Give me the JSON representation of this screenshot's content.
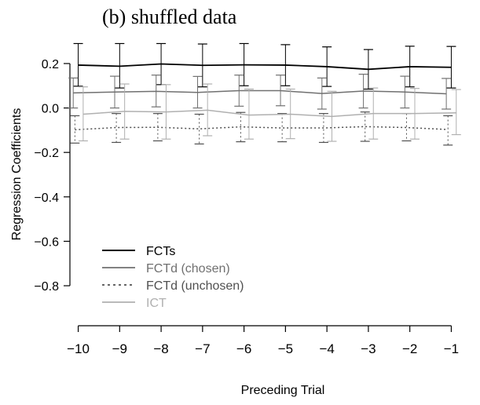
{
  "chart_data": {
    "type": "line",
    "title": "(b) shuffled data",
    "xlabel": "Preceding Trial",
    "ylabel": "Regression Coefficients",
    "x": [
      -10,
      -9,
      -8,
      -7,
      -6,
      -5,
      -4,
      -3,
      -2,
      -1
    ],
    "x_tick_labels": [
      "−10",
      "−9",
      "−8",
      "−7",
      "−6",
      "−5",
      "−4",
      "−3",
      "−2",
      "−1"
    ],
    "yticks": [
      0.2,
      0.0,
      -0.2,
      -0.4,
      -0.6,
      -0.8
    ],
    "y_tick_labels": [
      "0.2",
      "0.0",
      "−0.2",
      "−0.4",
      "−0.6",
      "−0.8"
    ],
    "xlim": [
      -10.2,
      -0.8
    ],
    "ylim": [
      -0.98,
      0.38
    ],
    "grid": false,
    "legend_position": "bottom-left",
    "series": [
      {
        "name": "FCTs",
        "color": "#000000",
        "dash": "solid",
        "values": [
          0.193,
          0.188,
          0.198,
          0.192,
          0.194,
          0.193,
          0.186,
          0.174,
          0.186,
          0.183
        ],
        "err_low": [
          0.098,
          0.09,
          0.105,
          0.095,
          0.1,
          0.1,
          0.097,
          0.085,
          0.095,
          0.09
        ],
        "err_high": [
          0.29,
          0.29,
          0.29,
          0.288,
          0.29,
          0.285,
          0.275,
          0.263,
          0.278,
          0.277
        ]
      },
      {
        "name": "FCTd (chosen)",
        "color": "#707070",
        "dash": "solid",
        "values": [
          0.068,
          0.072,
          0.075,
          0.07,
          0.078,
          0.078,
          0.065,
          0.076,
          0.072,
          0.064
        ],
        "err_low": [
          0.0,
          0.0,
          0.005,
          0.0,
          0.008,
          0.01,
          -0.005,
          0.0,
          0.0,
          -0.005
        ],
        "err_high": [
          0.135,
          0.143,
          0.148,
          0.142,
          0.148,
          0.148,
          0.135,
          0.152,
          0.143,
          0.133
        ]
      },
      {
        "name": "FCTd (unchosen)",
        "color": "#505050",
        "dash": "dotted",
        "values": [
          -0.098,
          -0.088,
          -0.087,
          -0.094,
          -0.085,
          -0.09,
          -0.09,
          -0.084,
          -0.088,
          -0.097
        ],
        "err_low": [
          -0.158,
          -0.155,
          -0.148,
          -0.162,
          -0.152,
          -0.152,
          -0.155,
          -0.15,
          -0.148,
          -0.167
        ],
        "err_high": [
          -0.035,
          -0.025,
          -0.025,
          -0.028,
          -0.02,
          -0.025,
          -0.025,
          -0.018,
          -0.025,
          -0.035
        ]
      },
      {
        "name": "ICT",
        "color": "#b0b0b0",
        "dash": "solid",
        "values": [
          -0.028,
          -0.015,
          -0.018,
          -0.01,
          -0.032,
          -0.028,
          -0.038,
          -0.025,
          -0.025,
          -0.022
        ],
        "err_low": [
          -0.148,
          -0.14,
          -0.14,
          -0.125,
          -0.14,
          -0.138,
          -0.15,
          -0.14,
          -0.14,
          -0.12
        ],
        "err_high": [
          0.095,
          0.108,
          0.105,
          0.108,
          0.085,
          0.085,
          0.075,
          0.09,
          0.088,
          0.083
        ]
      }
    ]
  }
}
